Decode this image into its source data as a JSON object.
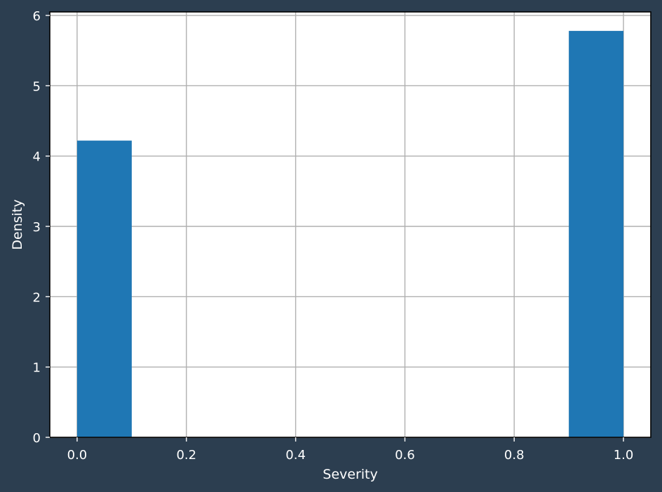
{
  "colors": {
    "figure_background": "#2c3e50",
    "plot_background": "#ffffff",
    "bar": "#1f77b4",
    "grid": "#b0b0b0",
    "axes": "#000000",
    "text": "#ffffff"
  },
  "chart_data": {
    "type": "bar",
    "title": "",
    "xlabel": "Severity",
    "ylabel": "Density",
    "xlim": [
      -0.05,
      1.05
    ],
    "ylim": [
      0,
      6.05
    ],
    "grid": true,
    "bins": [
      {
        "x0": 0.0,
        "x1": 0.1,
        "value": 4.22
      },
      {
        "x0": 0.9,
        "x1": 1.0,
        "value": 5.78
      }
    ],
    "x_ticks": [
      {
        "value": 0.0,
        "label": "0.0"
      },
      {
        "value": 0.2,
        "label": "0.2"
      },
      {
        "value": 0.4,
        "label": "0.4"
      },
      {
        "value": 0.6,
        "label": "0.6"
      },
      {
        "value": 0.8,
        "label": "0.8"
      },
      {
        "value": 1.0,
        "label": "1.0"
      }
    ],
    "y_ticks": [
      {
        "value": 0,
        "label": "0"
      },
      {
        "value": 1,
        "label": "1"
      },
      {
        "value": 2,
        "label": "2"
      },
      {
        "value": 3,
        "label": "3"
      },
      {
        "value": 4,
        "label": "4"
      },
      {
        "value": 5,
        "label": "5"
      },
      {
        "value": 6,
        "label": "6"
      }
    ]
  }
}
